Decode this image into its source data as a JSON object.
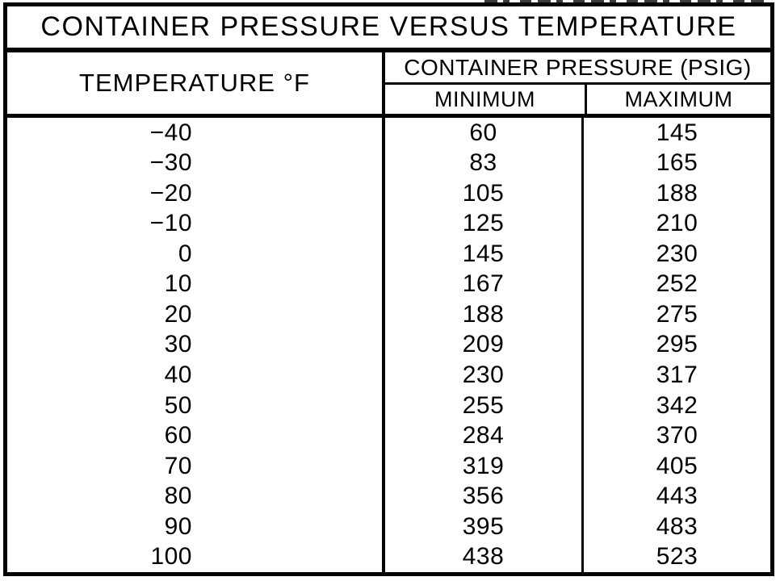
{
  "title": "CONTAINER PRESSURE VERSUS TEMPERATURE",
  "table": {
    "temp_header": "TEMPERATURE °F",
    "pressure_header": "CONTAINER PRESSURE (PSIG)",
    "min_header": "MINIMUM",
    "max_header": "MAXIMUM",
    "rows": [
      {
        "temp": "−40",
        "min": "60",
        "max": "145"
      },
      {
        "temp": "−30",
        "min": "83",
        "max": "165"
      },
      {
        "temp": "−20",
        "min": "105",
        "max": "188"
      },
      {
        "temp": "−10",
        "min": "125",
        "max": "210"
      },
      {
        "temp": "0",
        "min": "145",
        "max": "230"
      },
      {
        "temp": "10",
        "min": "167",
        "max": "252"
      },
      {
        "temp": "20",
        "min": "188",
        "max": "275"
      },
      {
        "temp": "30",
        "min": "209",
        "max": "295"
      },
      {
        "temp": "40",
        "min": "230",
        "max": "317"
      },
      {
        "temp": "50",
        "min": "255",
        "max": "342"
      },
      {
        "temp": "60",
        "min": "284",
        "max": "370"
      },
      {
        "temp": "70",
        "min": "319",
        "max": "405"
      },
      {
        "temp": "80",
        "min": "356",
        "max": "443"
      },
      {
        "temp": "90",
        "min": "395",
        "max": "483"
      },
      {
        "temp": "100",
        "min": "438",
        "max": "523"
      }
    ]
  },
  "colors": {
    "border": "#050505",
    "background": "#ffffff",
    "text": "#000000"
  }
}
